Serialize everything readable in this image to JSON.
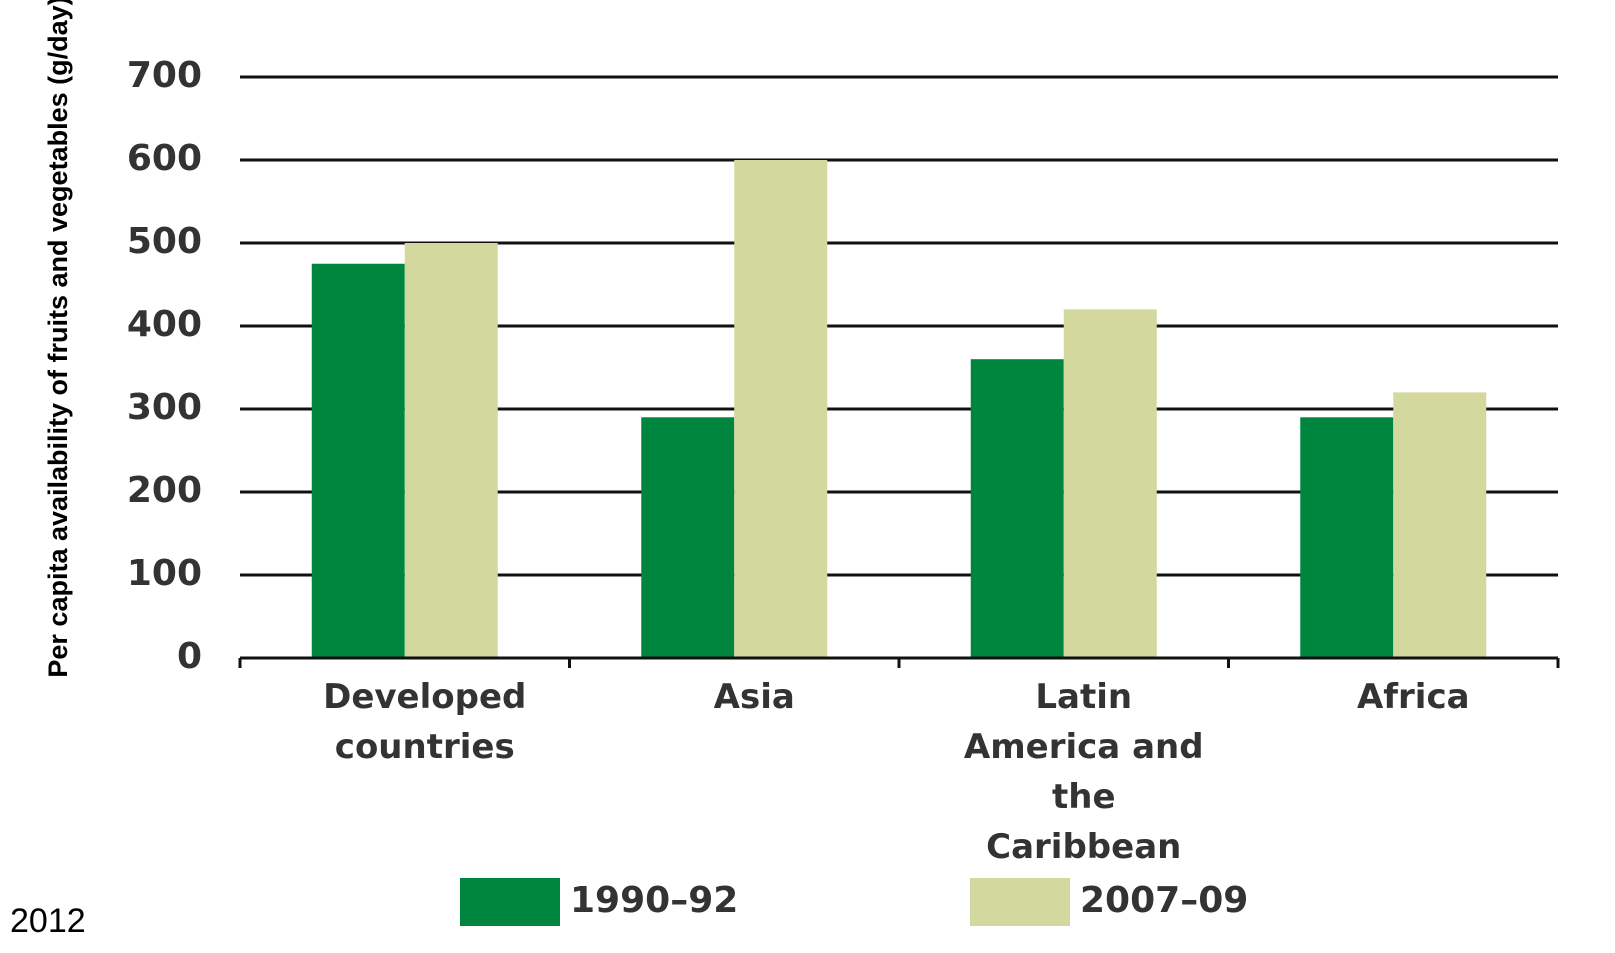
{
  "chart_data": {
    "type": "bar",
    "y_label": "Per capita availability of fruits and vegetables (g/day)",
    "categories": [
      "Developed countries",
      "Asia",
      "Latin America and the Caribbean",
      "Africa"
    ],
    "series": [
      {
        "name": "1990–92",
        "color": "#00853f",
        "values": [
          475,
          290,
          360,
          290
        ]
      },
      {
        "name": "2007–09",
        "color": "#d3d89e",
        "values": [
          500,
          600,
          420,
          320
        ]
      }
    ],
    "ylim": [
      0,
      700
    ],
    "yticks": [
      0,
      100,
      200,
      300,
      400,
      500,
      600,
      700
    ],
    "grid": true,
    "annotation": "2012"
  }
}
